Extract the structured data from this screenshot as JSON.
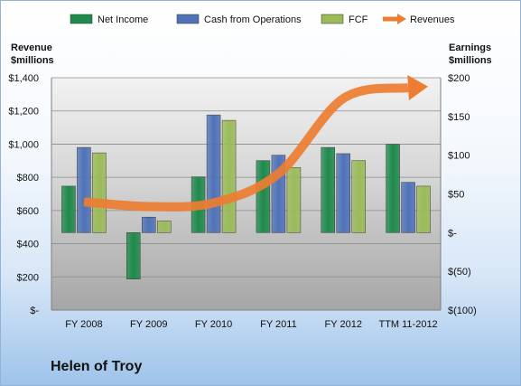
{
  "chart_data": {
    "type": "bar",
    "categories": [
      "FY 2008",
      "FY 2009",
      "FY 2010",
      "FY 2011",
      "FY 2012",
      "TTM 11-2012"
    ],
    "series": [
      {
        "name": "Net Income",
        "axis": "right",
        "values": [
          60,
          -60,
          72,
          93,
          110,
          114
        ],
        "color": "#1f8a4c"
      },
      {
        "name": "Cash from Operations",
        "axis": "right",
        "values": [
          110,
          20,
          152,
          100,
          102,
          65
        ],
        "color": "#4f72b8"
      },
      {
        "name": "FCF",
        "axis": "right",
        "values": [
          103,
          15,
          145,
          84,
          93,
          60
        ],
        "color": "#9bbb59"
      }
    ],
    "line_series": {
      "name": "Revenues",
      "axis": "left",
      "type": "line-arrow",
      "values": [
        652,
        624,
        646,
        822,
        1275,
        1340
      ],
      "color": "#ed7d31"
    },
    "ylabel_left": "Revenue\n$millions",
    "ylabel_right": "Earnings\n$millions",
    "ylim_left": [
      0,
      1400
    ],
    "ylim_right": [
      -100,
      200
    ],
    "yticks_left": [
      "$-",
      "$200",
      "$400",
      "$600",
      "$800",
      "$1,000",
      "$1,200",
      "$1,400"
    ],
    "yticks_right": [
      "$(100)",
      "$(50)",
      "$-",
      "$50",
      "$100",
      "$150",
      "$200"
    ],
    "legend_position": "top",
    "grid": true,
    "title": "Helen of Troy"
  }
}
